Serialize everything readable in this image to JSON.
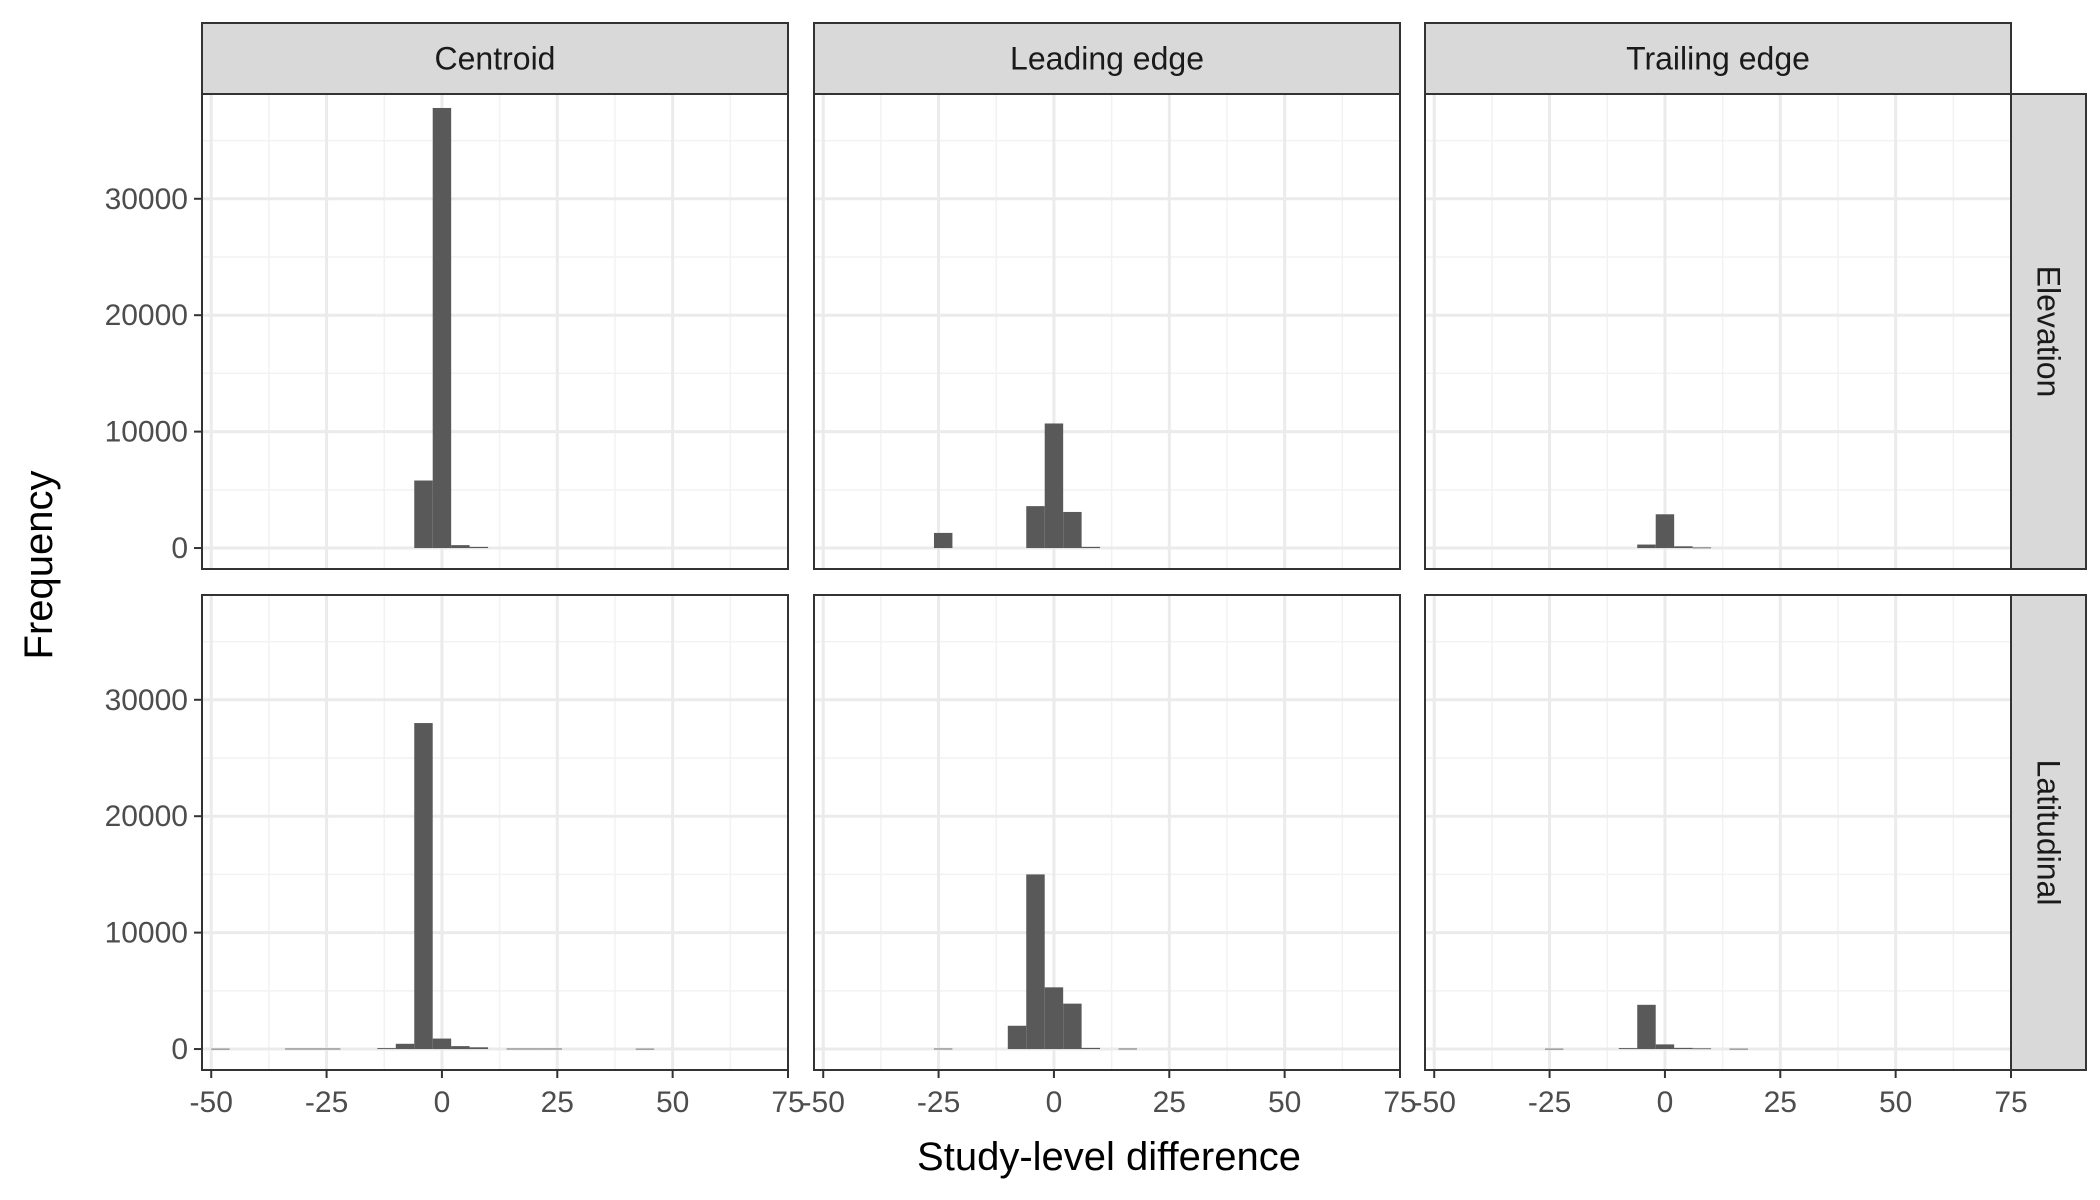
{
  "chart_data": {
    "type": "bar",
    "xlabel": "Study-level difference",
    "ylabel": "Frequency",
    "columns": [
      "Centroid",
      "Leading edge",
      "Trailing edge"
    ],
    "rows": [
      "Elevation",
      "Latitudinal"
    ],
    "xlim": [
      -52,
      75
    ],
    "ylim": [
      -1800,
      39000
    ],
    "x_ticks": [
      -50,
      -25,
      0,
      25,
      50,
      75
    ],
    "x_tick_labels": [
      "-50",
      "-25",
      "0",
      "25",
      "50",
      "75"
    ],
    "y_ticks": [
      0,
      10000,
      20000,
      30000
    ],
    "y_tick_labels": [
      "0",
      "10000",
      "20000",
      "30000"
    ],
    "bin_width": 4,
    "grid": true,
    "bar_color": "#595959",
    "panels": [
      {
        "row": "Elevation",
        "column": "Centroid",
        "bins": [
          [
            -6,
            -2,
            5800
          ],
          [
            -2,
            2,
            37800
          ],
          [
            2,
            6,
            250
          ],
          [
            6,
            10,
            100
          ]
        ]
      },
      {
        "row": "Elevation",
        "column": "Leading edge",
        "bins": [
          [
            -26,
            -22,
            1300
          ],
          [
            -6,
            -2,
            3600
          ],
          [
            -2,
            2,
            10700
          ],
          [
            2,
            6,
            3100
          ],
          [
            6,
            10,
            100
          ]
        ]
      },
      {
        "row": "Elevation",
        "column": "Trailing edge",
        "bins": [
          [
            -6,
            -2,
            300
          ],
          [
            -2,
            2,
            2900
          ],
          [
            2,
            6,
            150
          ],
          [
            6,
            10,
            50
          ]
        ]
      },
      {
        "row": "Latitudinal",
        "column": "Centroid",
        "bins": [
          [
            -50,
            -46,
            30
          ],
          [
            -34,
            -30,
            40
          ],
          [
            -30,
            -26,
            40
          ],
          [
            -26,
            -22,
            40
          ],
          [
            -14,
            -10,
            80
          ],
          [
            -10,
            -6,
            450
          ],
          [
            -6,
            -2,
            28000
          ],
          [
            -2,
            2,
            900
          ],
          [
            2,
            6,
            250
          ],
          [
            6,
            10,
            150
          ],
          [
            14,
            18,
            40
          ],
          [
            18,
            22,
            40
          ],
          [
            22,
            26,
            40
          ],
          [
            42,
            46,
            30
          ]
        ]
      },
      {
        "row": "Latitudinal",
        "column": "Leading edge",
        "bins": [
          [
            -26,
            -22,
            40
          ],
          [
            -10,
            -6,
            2000
          ],
          [
            -6,
            -2,
            15000
          ],
          [
            -2,
            2,
            5300
          ],
          [
            2,
            6,
            3900
          ],
          [
            6,
            10,
            100
          ],
          [
            14,
            18,
            40
          ]
        ]
      },
      {
        "row": "Latitudinal",
        "column": "Trailing edge",
        "bins": [
          [
            -26,
            -22,
            30
          ],
          [
            -10,
            -6,
            80
          ],
          [
            -6,
            -2,
            3800
          ],
          [
            -2,
            2,
            400
          ],
          [
            2,
            6,
            100
          ],
          [
            6,
            10,
            60
          ],
          [
            14,
            18,
            30
          ]
        ]
      }
    ]
  }
}
